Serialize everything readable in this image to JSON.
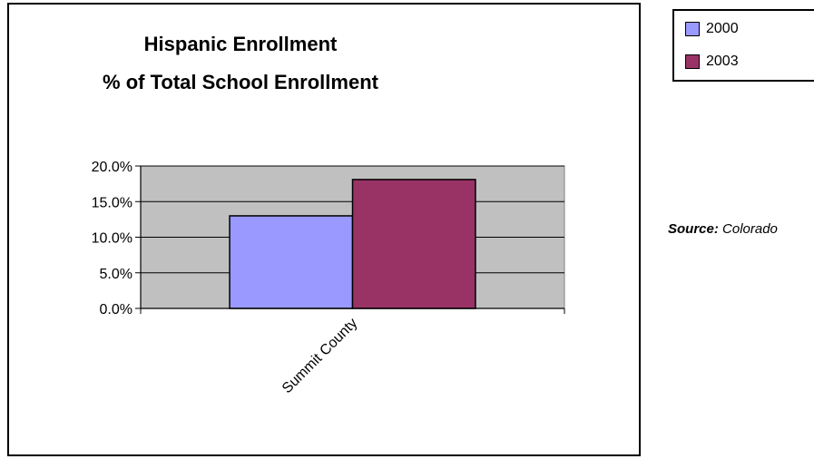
{
  "chart_data": {
    "type": "bar",
    "title_lines": [
      "Hispanic Enrollment",
      "% of Total School Enrollment"
    ],
    "categories": [
      "Summit County"
    ],
    "series": [
      {
        "name": "2000",
        "values": [
          0.13
        ],
        "color": "#9999ff"
      },
      {
        "name": "2003",
        "values": [
          0.181
        ],
        "color": "#993366"
      }
    ],
    "yticks": [
      "0.0%",
      "5.0%",
      "10.0%",
      "15.0%",
      "20.0%"
    ],
    "ylim": [
      0,
      0.2
    ],
    "grid": true,
    "plot_background": "#c0c0c0",
    "legend_position": "top-right"
  },
  "source": {
    "label": "Source:",
    "text": "Colorado"
  }
}
